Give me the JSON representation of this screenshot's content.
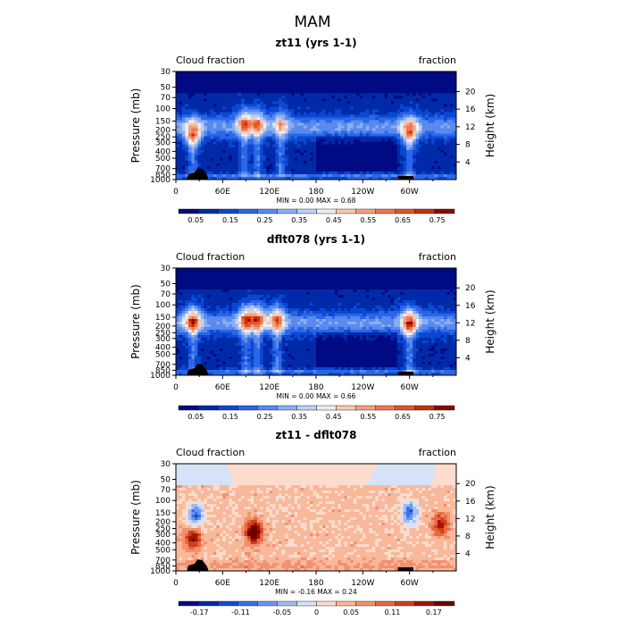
{
  "page_title": "MAM",
  "chart_data": [
    {
      "type": "heatmap",
      "title": "zt11 (yrs 1-1)",
      "left_label": "Cloud fraction",
      "right_label": "fraction",
      "ylabel": "Pressure (mb)",
      "y2label": "Height (km)",
      "xticks": [
        "0",
        "60E",
        "120E",
        "180",
        "120W",
        "60W"
      ],
      "yticks": [
        "30",
        "50",
        "70",
        "100",
        "150",
        "200",
        "250",
        "300",
        "400",
        "500",
        "700",
        "850",
        "1000"
      ],
      "y2ticks": [
        "20",
        "16",
        "12",
        "8",
        "4"
      ],
      "stats": "MIN =    0.00   MAX =    0.68",
      "colorbar_ticks": [
        "0.05",
        "0.15",
        "0.25",
        "0.35",
        "0.45",
        "0.55",
        "0.65",
        "0.75"
      ],
      "colorbar_range": [
        0,
        0.8
      ],
      "features": [
        {
          "lon": 22,
          "p": 220,
          "value": 0.62
        },
        {
          "lon": 88,
          "p": 150,
          "value": 0.52
        },
        {
          "lon": 105,
          "p": 150,
          "value": 0.48
        },
        {
          "lon": 135,
          "p": 150,
          "value": 0.42
        },
        {
          "lon": 300,
          "p": 200,
          "value": 0.6
        }
      ]
    },
    {
      "type": "heatmap",
      "title": "dflt078 (yrs 1-1)",
      "left_label": "Cloud fraction",
      "right_label": "fraction",
      "ylabel": "Pressure (mb)",
      "y2label": "Height (km)",
      "xticks": [
        "0",
        "60E",
        "120E",
        "180",
        "120W",
        "60W"
      ],
      "yticks": [
        "30",
        "50",
        "70",
        "100",
        "150",
        "200",
        "250",
        "300",
        "400",
        "500",
        "700",
        "850",
        "1000"
      ],
      "y2ticks": [
        "20",
        "16",
        "12",
        "8",
        "4"
      ],
      "stats": "MIN =    0.00   MAX =    0.66",
      "colorbar_ticks": [
        "0.05",
        "0.15",
        "0.25",
        "0.35",
        "0.45",
        "0.55",
        "0.65",
        "0.75"
      ],
      "colorbar_range": [
        0,
        0.8
      ],
      "features": [
        {
          "lon": 22,
          "p": 160,
          "value": 0.62
        },
        {
          "lon": 90,
          "p": 150,
          "value": 0.55
        },
        {
          "lon": 105,
          "p": 150,
          "value": 0.55
        },
        {
          "lon": 130,
          "p": 150,
          "value": 0.55
        },
        {
          "lon": 300,
          "p": 170,
          "value": 0.62
        }
      ]
    },
    {
      "type": "heatmap",
      "title": "zt11 - dflt078",
      "left_label": "Cloud fraction",
      "right_label": "fraction",
      "ylabel": "Pressure (mb)",
      "y2label": "Height (km)",
      "xticks": [
        "0",
        "60E",
        "120E",
        "180",
        "120W",
        "60W"
      ],
      "yticks": [
        "30",
        "50",
        "70",
        "100",
        "150",
        "200",
        "250",
        "300",
        "400",
        "500",
        "700",
        "850",
        "1000"
      ],
      "y2ticks": [
        "20",
        "16",
        "12",
        "8",
        "4"
      ],
      "stats": "MIN =   -0.16   MAX =    0.24",
      "colorbar_ticks": [
        "-0.17",
        "-0.11",
        "-0.05",
        "0",
        "0.05",
        "0.11",
        "0.17"
      ],
      "colorbar_range": [
        -0.2,
        0.2
      ],
      "features": [
        {
          "lon": 25,
          "p": 160,
          "value": -0.15
        },
        {
          "lon": 22,
          "p": 350,
          "value": 0.14
        },
        {
          "lon": 100,
          "p": 280,
          "value": 0.2
        },
        {
          "lon": 300,
          "p": 150,
          "value": -0.15
        },
        {
          "lon": 340,
          "p": 220,
          "value": 0.12
        }
      ]
    }
  ],
  "colors": {
    "cloud_scale": [
      "#000a82",
      "#002aa8",
      "#0a48d2",
      "#2a66e6",
      "#5a8aee",
      "#8aaef2",
      "#bcd0f6",
      "#eeeeee",
      "#f8c8b0",
      "#f2a080",
      "#ec7850",
      "#e25428",
      "#c8300a",
      "#8c0a00"
    ],
    "diff_scale": [
      "#000a82",
      "#002aa8",
      "#1a48d2",
      "#3a70e8",
      "#6a96ee",
      "#a0bcf4",
      "#d6e2f8",
      "#fcdccc",
      "#f8b89a",
      "#f29070",
      "#e86840",
      "#d0401a",
      "#a01800",
      "#6e0000"
    ],
    "topography": "#000000"
  }
}
